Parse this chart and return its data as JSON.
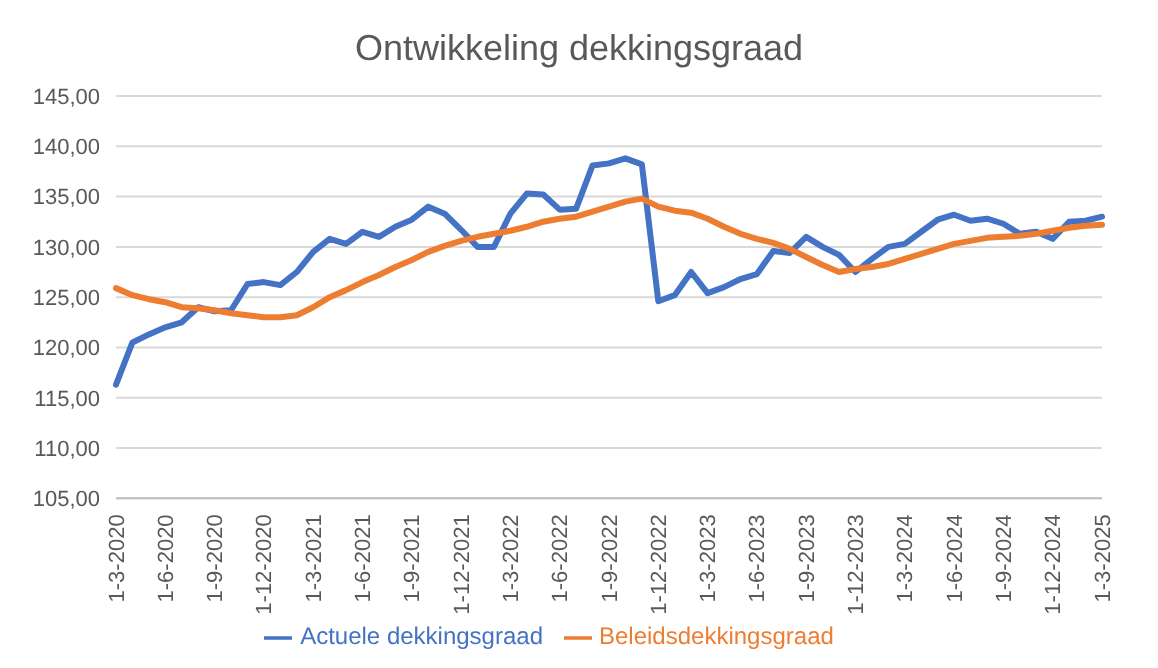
{
  "chart_data": {
    "type": "line",
    "title": "Ontwikkeling dekkingsgraad",
    "categories": [
      "1-3-2020",
      null,
      null,
      "1-6-2020",
      null,
      null,
      "1-9-2020",
      null,
      null,
      "1-12-2020",
      null,
      null,
      "1-3-2021",
      null,
      null,
      "1-6-2021",
      null,
      null,
      "1-9-2021",
      null,
      null,
      "1-12-2021",
      null,
      null,
      "1-3-2022",
      null,
      null,
      "1-6-2022",
      null,
      null,
      "1-9-2022",
      null,
      null,
      "1-12-2022",
      null,
      null,
      "1-3-2023",
      null,
      null,
      "1-6-2023",
      null,
      null,
      "1-9-2023",
      null,
      null,
      "1-12-2023",
      null,
      null,
      "1-3-2024",
      null,
      null,
      "1-6-2024",
      null,
      null,
      "1-9-2024",
      null,
      null,
      "1-12-2024",
      null,
      null,
      "1-3-2025"
    ],
    "series": [
      {
        "name": "Actuele dekkingsgraad",
        "color": "#4472c4",
        "values": [
          116.3,
          120.5,
          121.3,
          122,
          122.5,
          124,
          123.6,
          123.7,
          126.3,
          126.5,
          126.2,
          127.5,
          129.5,
          130.8,
          130.3,
          131.5,
          131,
          132,
          132.7,
          134,
          133.3,
          131.7,
          130,
          130,
          133.3,
          135.3,
          135.2,
          133.7,
          133.8,
          138.1,
          138.3,
          138.8,
          138.2,
          124.6,
          125.2,
          127.5,
          125.4,
          126,
          126.8,
          127.3,
          129.6,
          129.4,
          131,
          130,
          129.2,
          127.5,
          128.8,
          130,
          130.3,
          131.5,
          132.7,
          133.2,
          132.6,
          132.8,
          132.3,
          131.3,
          131.5,
          130.8,
          132.5,
          132.6,
          133
        ]
      },
      {
        "name": "Beleidsdekkingsgraad",
        "color": "#ed7d31",
        "values": [
          125.9,
          125.2,
          124.8,
          124.5,
          124,
          123.9,
          123.7,
          123.4,
          123.2,
          123,
          123,
          123.2,
          124,
          125,
          125.7,
          126.5,
          127.2,
          128,
          128.7,
          129.5,
          130.1,
          130.6,
          131,
          131.3,
          131.6,
          132,
          132.5,
          132.8,
          133,
          133.5,
          134,
          134.5,
          134.8,
          134,
          133.6,
          133.4,
          132.8,
          132,
          131.3,
          130.8,
          130.4,
          129.8,
          129,
          128.2,
          127.5,
          127.8,
          128,
          128.3,
          128.8,
          129.3,
          129.8,
          130.3,
          130.6,
          130.9,
          131,
          131.1,
          131.3,
          131.6,
          131.9,
          132.1,
          132.2
        ]
      }
    ],
    "ylim": [
      105,
      145
    ],
    "yticks": [
      {
        "value": 105,
        "label": "105,00"
      },
      {
        "value": 110,
        "label": "110,00"
      },
      {
        "value": 115,
        "label": "115,00"
      },
      {
        "value": 120,
        "label": "120,00"
      },
      {
        "value": 125,
        "label": "125,00"
      },
      {
        "value": 130,
        "label": "130,00"
      },
      {
        "value": 135,
        "label": "135,00"
      },
      {
        "value": 140,
        "label": "140,00"
      },
      {
        "value": 145,
        "label": "145,00"
      }
    ],
    "grid": "y",
    "legend": "bottom",
    "marker": "none",
    "line_style": "solid"
  }
}
